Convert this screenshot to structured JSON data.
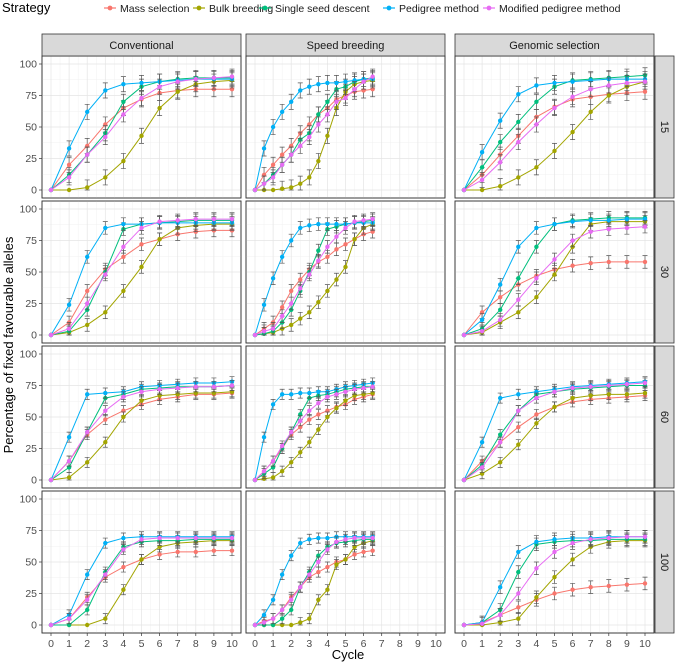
{
  "chart_data": {
    "type": "line",
    "xlabel": "Cycle",
    "ylabel": "Percentage of fixed favourable alleles",
    "legend": {
      "title": "Strategy",
      "position": "top",
      "entries": [
        {
          "name": "Mass selection",
          "color": "#F8766D"
        },
        {
          "name": "Bulk breeding",
          "color": "#A3A500"
        },
        {
          "name": "Single seed descent",
          "color": "#00BF7D"
        },
        {
          "name": "Pedigree method",
          "color": "#00B0F6"
        },
        {
          "name": "Modified pedigree method",
          "color": "#E76BF3"
        }
      ]
    },
    "columns": [
      "Conventional",
      "Speed breeding",
      "Genomic selection"
    ],
    "rows": [
      "15",
      "30",
      "60",
      "100"
    ],
    "x_ticks": [
      0,
      1,
      2,
      3,
      4,
      5,
      6,
      7,
      8,
      9,
      10
    ],
    "y_ticks": [
      0,
      25,
      50,
      75,
      100
    ],
    "xlim": [
      0,
      10
    ],
    "ylim": [
      0,
      100
    ],
    "speed_breeding_x": [
      0,
      0.5,
      1,
      1.5,
      2,
      2.5,
      3,
      3.5,
      4,
      4.5,
      5,
      5.5,
      6,
      6.5
    ],
    "series_order": [
      "Mass selection",
      "Bulk breeding",
      "Single seed descent",
      "Pedigree method",
      "Modified pedigree method"
    ],
    "panels": {
      "15": {
        "conventional": {
          "x": [
            0,
            1,
            2,
            3,
            4,
            5,
            6,
            7,
            8,
            9,
            10
          ],
          "err": 6,
          "series": [
            [
              0,
              20,
              35,
              52,
              65,
              72,
              77,
              79,
              80,
              80,
              80
            ],
            [
              0,
              0,
              2,
              10,
              23,
              43,
              65,
              78,
              84,
              86,
              87
            ],
            [
              0,
              12,
              28,
              45,
              70,
              82,
              86,
              88,
              89,
              89,
              89
            ],
            [
              0,
              33,
              62,
              79,
              84,
              85,
              86,
              87,
              88,
              88,
              88
            ],
            [
              0,
              10,
              28,
              42,
              60,
              73,
              82,
              86,
              88,
              89,
              90
            ]
          ]
        },
        "speed_breeding": {
          "err": 6,
          "series": [
            [
              0,
              12,
              20,
              28,
              35,
              45,
              52,
              60,
              65,
              72,
              75,
              78,
              79,
              80
            ],
            [
              0,
              0,
              0,
              1,
              2,
              5,
              10,
              23,
              43,
              65,
              78,
              84,
              86,
              87
            ],
            [
              0,
              5,
              12,
              20,
              28,
              40,
              45,
              60,
              70,
              80,
              82,
              86,
              88,
              89
            ],
            [
              0,
              33,
              50,
              62,
              70,
              79,
              82,
              84,
              85,
              85,
              86,
              87,
              88,
              88
            ],
            [
              0,
              5,
              10,
              20,
              28,
              35,
              42,
              52,
              60,
              70,
              73,
              80,
              86,
              90
            ]
          ]
        },
        "genomic": {
          "x": [
            0,
            1,
            2,
            3,
            4,
            5,
            6,
            7,
            8,
            9,
            10
          ],
          "err": 6,
          "series": [
            [
              0,
              12,
              28,
              43,
              58,
              66,
              72,
              74,
              76,
              77,
              78
            ],
            [
              0,
              0,
              3,
              10,
              18,
              31,
              46,
              62,
              75,
              82,
              86
            ],
            [
              0,
              18,
              38,
              54,
              70,
              82,
              87,
              88,
              89,
              90,
              91
            ],
            [
              0,
              30,
              55,
              76,
              83,
              85,
              86,
              87,
              88,
              88,
              88
            ],
            [
              0,
              8,
              22,
              38,
              52,
              65,
              74,
              80,
              83,
              85,
              86
            ]
          ]
        }
      },
      "30": {
        "conventional": {
          "x": [
            0,
            1,
            2,
            3,
            4,
            5,
            6,
            7,
            8,
            9,
            10
          ],
          "err": 5,
          "series": [
            [
              0,
              10,
              35,
              52,
              62,
              72,
              76,
              80,
              82,
              83,
              83
            ],
            [
              0,
              2,
              8,
              18,
              35,
              54,
              76,
              85,
              87,
              88,
              88
            ],
            [
              0,
              3,
              20,
              50,
              84,
              88,
              89,
              90,
              91,
              91,
              91
            ],
            [
              0,
              24,
              62,
              85,
              88,
              88,
              89,
              89,
              89,
              89,
              89
            ],
            [
              0,
              5,
              25,
              48,
              70,
              85,
              90,
              91,
              92,
              92,
              92
            ]
          ]
        },
        "speed_breeding": {
          "err": 5,
          "series": [
            [
              0,
              5,
              10,
              22,
              35,
              44,
              52,
              58,
              62,
              68,
              72,
              76,
              80,
              82
            ],
            [
              0,
              1,
              2,
              5,
              8,
              13,
              18,
              26,
              35,
              44,
              54,
              76,
              85,
              88
            ],
            [
              0,
              1,
              3,
              10,
              20,
              35,
              50,
              67,
              84,
              86,
              88,
              89,
              90,
              91
            ],
            [
              0,
              24,
              45,
              62,
              75,
              85,
              87,
              88,
              88,
              88,
              88,
              89,
              89,
              89
            ],
            [
              0,
              3,
              5,
              15,
              25,
              37,
              48,
              59,
              70,
              78,
              85,
              90,
              91,
              92
            ]
          ]
        },
        "genomic": {
          "x": [
            0,
            1,
            2,
            3,
            4,
            5,
            6,
            7,
            8,
            9,
            10
          ],
          "err": 5,
          "series": [
            [
              0,
              18,
              30,
              40,
              47,
              52,
              55,
              57,
              58,
              58,
              58
            ],
            [
              0,
              2,
              10,
              18,
              30,
              48,
              70,
              88,
              90,
              90,
              90
            ],
            [
              0,
              5,
              20,
              45,
              70,
              88,
              91,
              92,
              93,
              93,
              93
            ],
            [
              0,
              12,
              40,
              70,
              85,
              88,
              90,
              91,
              91,
              92,
              92
            ],
            [
              0,
              3,
              12,
              28,
              45,
              60,
              75,
              82,
              84,
              85,
              86
            ]
          ]
        }
      },
      "60": {
        "conventional": {
          "x": [
            0,
            1,
            2,
            3,
            4,
            5,
            6,
            7,
            8,
            9,
            10
          ],
          "err": 4,
          "series": [
            [
              0,
              15,
              36,
              48,
              55,
              60,
              64,
              66,
              68,
              68,
              69
            ],
            [
              0,
              2,
              14,
              30,
              50,
              63,
              67,
              68,
              69,
              69,
              70
            ],
            [
              0,
              10,
              38,
              65,
              68,
              72,
              73,
              74,
              74,
              74,
              75
            ],
            [
              0,
              34,
              68,
              69,
              70,
              74,
              75,
              76,
              77,
              77,
              78
            ],
            [
              0,
              15,
              38,
              55,
              66,
              70,
              72,
              73,
              74,
              74,
              75
            ]
          ]
        },
        "speed_breeding": {
          "err": 4,
          "series": [
            [
              0,
              7,
              15,
              25,
              36,
              42,
              48,
              52,
              55,
              58,
              60,
              64,
              66,
              68
            ],
            [
              0,
              1,
              2,
              7,
              14,
              22,
              30,
              40,
              50,
              57,
              63,
              67,
              68,
              69
            ],
            [
              0,
              5,
              10,
              25,
              38,
              52,
              65,
              67,
              68,
              70,
              72,
              73,
              74,
              74
            ],
            [
              0,
              34,
              60,
              68,
              68,
              69,
              69,
              70,
              70,
              72,
              74,
              75,
              76,
              77
            ],
            [
              0,
              7,
              15,
              27,
              38,
              47,
              55,
              61,
              66,
              68,
              70,
              72,
              73,
              74
            ]
          ]
        },
        "genomic": {
          "x": [
            0,
            1,
            2,
            3,
            4,
            5,
            6,
            7,
            8,
            9,
            10
          ],
          "err": 4,
          "series": [
            [
              0,
              15,
              30,
              42,
              52,
              58,
              62,
              64,
              65,
              66,
              67
            ],
            [
              0,
              5,
              14,
              28,
              45,
              58,
              65,
              67,
              68,
              68,
              69
            ],
            [
              0,
              12,
              36,
              55,
              68,
              70,
              72,
              73,
              74,
              75,
              75
            ],
            [
              0,
              30,
              65,
              68,
              70,
              72,
              74,
              75,
              76,
              77,
              78
            ],
            [
              0,
              10,
              30,
              55,
              65,
              70,
              73,
              74,
              75,
              76,
              77
            ]
          ]
        }
      },
      "100": {
        "conventional": {
          "x": [
            0,
            1,
            2,
            3,
            4,
            5,
            6,
            7,
            8,
            9,
            10
          ],
          "err": 4,
          "series": [
            [
              0,
              5,
              22,
              38,
              46,
              52,
              56,
              58,
              58,
              59,
              59
            ],
            [
              0,
              0,
              0,
              5,
              28,
              52,
              62,
              65,
              66,
              67,
              67
            ],
            [
              0,
              0,
              12,
              42,
              62,
              66,
              67,
              67,
              68,
              68,
              68
            ],
            [
              0,
              8,
              40,
              65,
              69,
              70,
              70,
              70,
              70,
              70,
              70
            ],
            [
              0,
              5,
              20,
              40,
              60,
              68,
              69,
              69,
              69,
              69,
              69
            ]
          ]
        },
        "speed_breeding": {
          "err": 4,
          "series": [
            [
              0,
              3,
              5,
              12,
              22,
              30,
              38,
              42,
              46,
              50,
              52,
              56,
              58,
              59
            ],
            [
              0,
              0,
              0,
              0,
              0,
              2,
              5,
              20,
              28,
              48,
              52,
              62,
              65,
              67
            ],
            [
              0,
              0,
              0,
              5,
              12,
              30,
              42,
              55,
              62,
              65,
              66,
              67,
              68,
              68
            ],
            [
              0,
              8,
              20,
              40,
              55,
              65,
              68,
              69,
              69,
              70,
              70,
              70,
              70,
              70
            ],
            [
              0,
              2,
              5,
              12,
              20,
              30,
              40,
              50,
              60,
              66,
              68,
              69,
              69,
              69
            ]
          ]
        },
        "genomic": {
          "x": [
            0,
            1,
            2,
            3,
            4,
            5,
            6,
            7,
            8,
            9,
            10
          ],
          "err": 5,
          "series": [
            [
              0,
              2,
              8,
              14,
              20,
              25,
              28,
              30,
              31,
              32,
              33
            ],
            [
              0,
              0,
              2,
              5,
              22,
              38,
              52,
              62,
              66,
              67,
              67
            ],
            [
              0,
              2,
              12,
              42,
              64,
              66,
              67,
              67,
              68,
              68,
              68
            ],
            [
              0,
              2,
              30,
              58,
              66,
              68,
              69,
              69,
              70,
              70,
              70
            ],
            [
              0,
              1,
              8,
              25,
              45,
              58,
              65,
              68,
              69,
              70,
              70
            ]
          ]
        }
      }
    }
  }
}
